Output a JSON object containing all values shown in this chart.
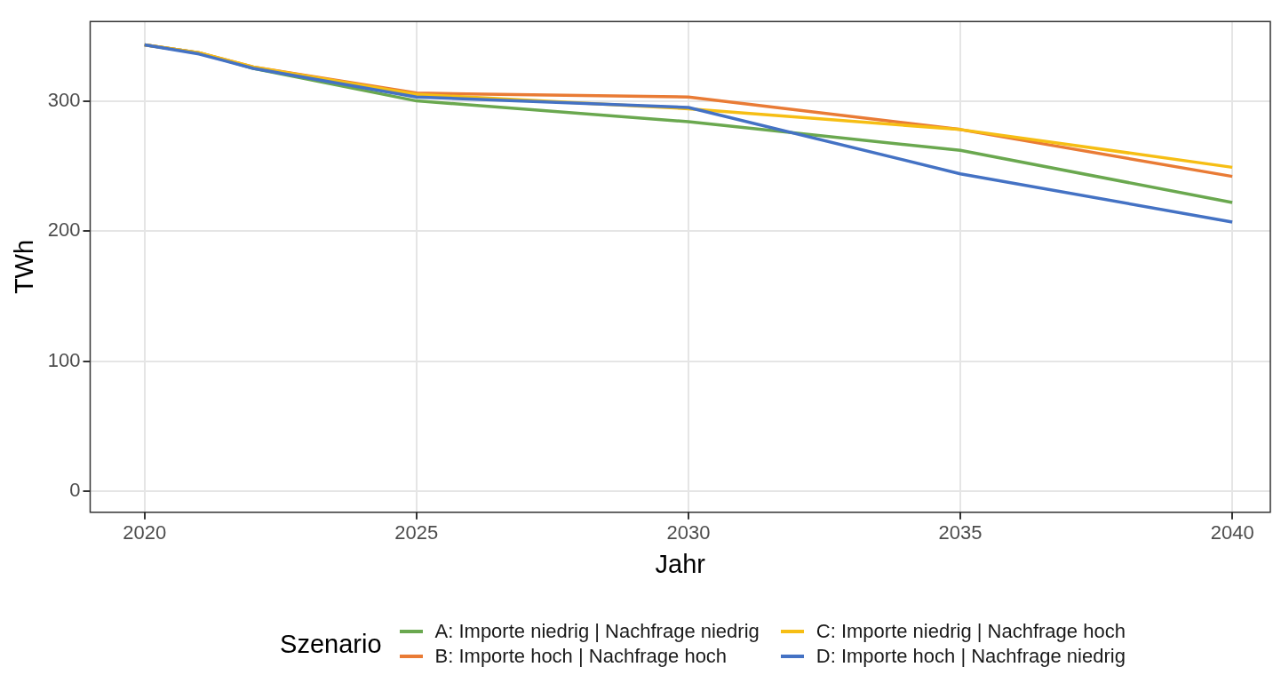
{
  "chart_data": {
    "type": "line",
    "xlabel": "Jahr",
    "ylabel": "TWh",
    "legend_title": "Szenario",
    "legend": "bottom",
    "x": [
      2020,
      2021,
      2022,
      2025,
      2030,
      2035,
      2040
    ],
    "series": [
      {
        "name": "A: Importe niedrig | Nachfrage niedrig",
        "color": "#6aa84f",
        "values": [
          343,
          337,
          325,
          300,
          284,
          262,
          222
        ]
      },
      {
        "name": "B: Importe hoch | Nachfrage hoch",
        "color": "#e97b35",
        "values": [
          343,
          337,
          326,
          306,
          303,
          278,
          242
        ]
      },
      {
        "name": "C: Importe niedrig | Nachfrage hoch",
        "color": "#f6be14",
        "values": [
          343,
          337,
          326,
          305,
          294,
          278,
          249
        ]
      },
      {
        "name": "D: Importe hoch | Nachfrage niedrig",
        "color": "#4472c4",
        "values": [
          343,
          336,
          325,
          303,
          295,
          244,
          207
        ]
      }
    ],
    "xlim": [
      2019,
      2040.7
    ],
    "xticks": [
      2020,
      2025,
      2030,
      2035,
      2040
    ],
    "ylim": [
      -16,
      361
    ],
    "yticks": [
      0,
      100,
      200,
      300
    ],
    "grid": true,
    "marker": "none",
    "line_style": "solid"
  }
}
